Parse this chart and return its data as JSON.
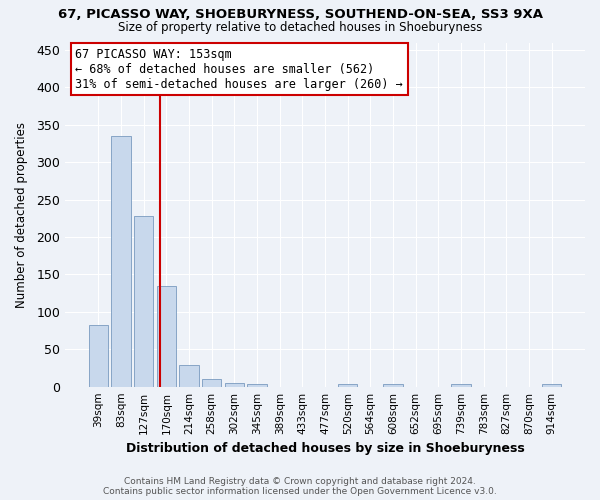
{
  "title": "67, PICASSO WAY, SHOEBURYNESS, SOUTHEND-ON-SEA, SS3 9XA",
  "subtitle": "Size of property relative to detached houses in Shoeburyness",
  "xlabel": "Distribution of detached houses by size in Shoeburyness",
  "ylabel": "Number of detached properties",
  "footnote1": "Contains HM Land Registry data © Crown copyright and database right 2024.",
  "footnote2": "Contains public sector information licensed under the Open Government Licence v3.0.",
  "annotation_line1": "67 PICASSO WAY: 153sqm",
  "annotation_line2": "← 68% of detached houses are smaller (562)",
  "annotation_line3": "31% of semi-detached houses are larger (260) →",
  "bar_color": "#c8d8ec",
  "bar_edge_color": "#7a9bbf",
  "vline_color": "#cc0000",
  "annotation_box_edgecolor": "#cc0000",
  "annotation_box_facecolor": "#ffffff",
  "background_color": "#eef2f8",
  "grid_color": "#ffffff",
  "ylim": [
    0,
    460
  ],
  "yticks": [
    0,
    50,
    100,
    150,
    200,
    250,
    300,
    350,
    400,
    450
  ],
  "categories": [
    "39sqm",
    "83sqm",
    "127sqm",
    "170sqm",
    "214sqm",
    "258sqm",
    "302sqm",
    "345sqm",
    "389sqm",
    "433sqm",
    "477sqm",
    "520sqm",
    "564sqm",
    "608sqm",
    "652sqm",
    "695sqm",
    "739sqm",
    "783sqm",
    "827sqm",
    "870sqm",
    "914sqm"
  ],
  "values": [
    83,
    335,
    228,
    135,
    29,
    10,
    5,
    4,
    0,
    0,
    0,
    4,
    0,
    3,
    0,
    0,
    3,
    0,
    0,
    0,
    3
  ],
  "vline_x_index": 2.72
}
